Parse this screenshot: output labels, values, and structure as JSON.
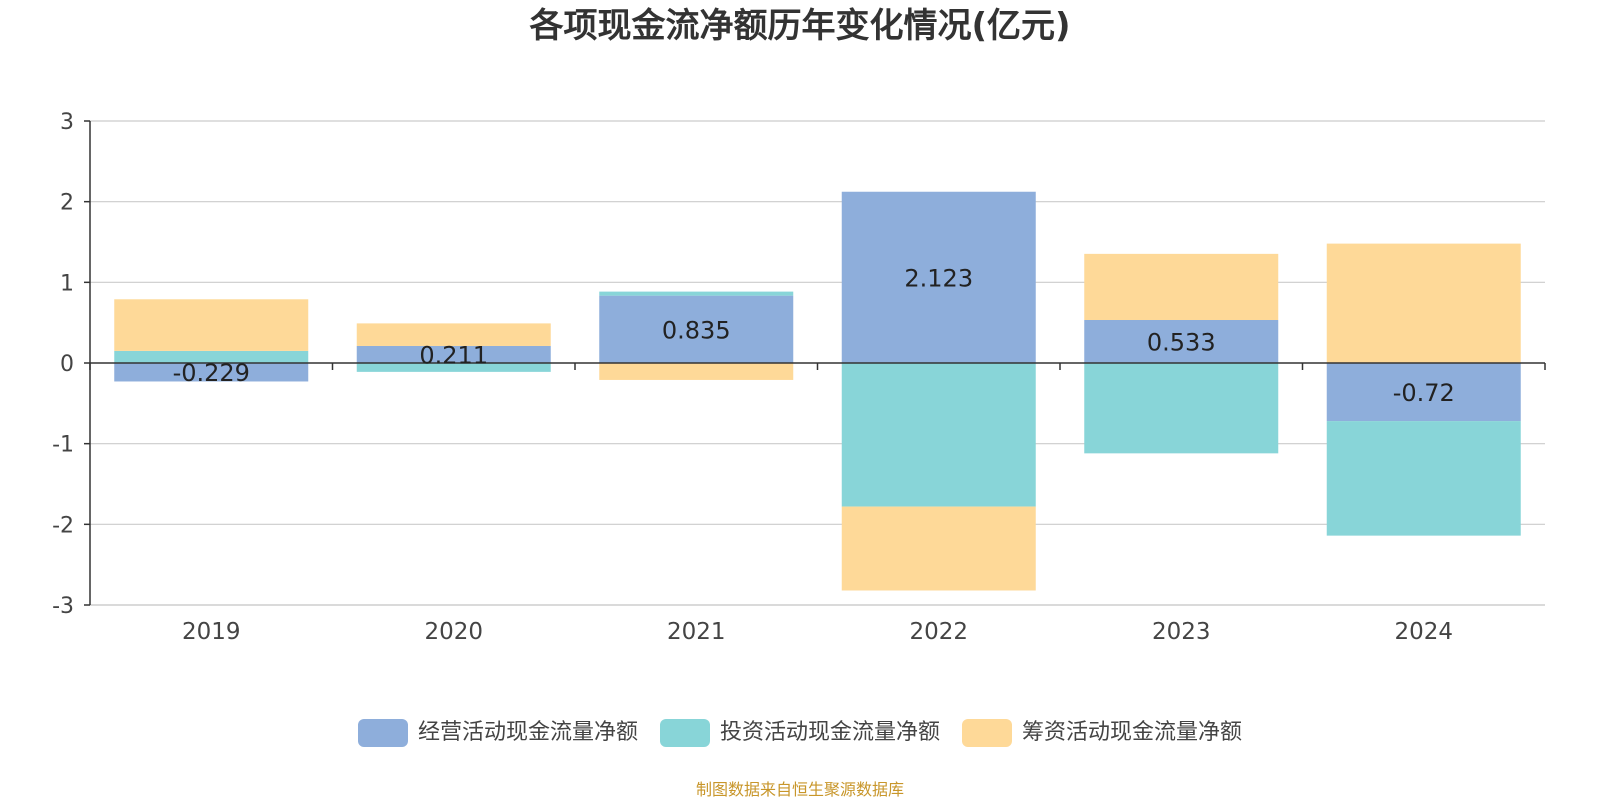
{
  "chart_data": {
    "type": "bar",
    "stacked": true,
    "title": "各项现金流净额历年变化情况(亿元)",
    "categories": [
      "2019",
      "2020",
      "2021",
      "2022",
      "2023",
      "2024"
    ],
    "ylim": [
      -3,
      3
    ],
    "yticks": [
      -3,
      -2,
      -1,
      0,
      1,
      2,
      3
    ],
    "grid": true,
    "legend_position": "bottom",
    "series": [
      {
        "name": "经营活动现金流量净额",
        "color": "#8eaedb",
        "values": [
          -0.229,
          0.211,
          0.835,
          2.123,
          0.533,
          -0.72
        ],
        "labels": [
          "-0.229",
          "0.211",
          "0.835",
          "2.123",
          "0.533",
          "-0.72"
        ]
      },
      {
        "name": "投资活动现金流量净额",
        "color": "#88d5d8",
        "values": [
          0.15,
          -0.11,
          0.05,
          -1.78,
          -1.12,
          -1.42
        ]
      },
      {
        "name": "筹资活动现金流量净额",
        "color": "#fed998",
        "values": [
          0.64,
          0.28,
          -0.21,
          -1.04,
          0.82,
          1.48
        ]
      }
    ]
  },
  "source_note": "制图数据来自恒生聚源数据库"
}
